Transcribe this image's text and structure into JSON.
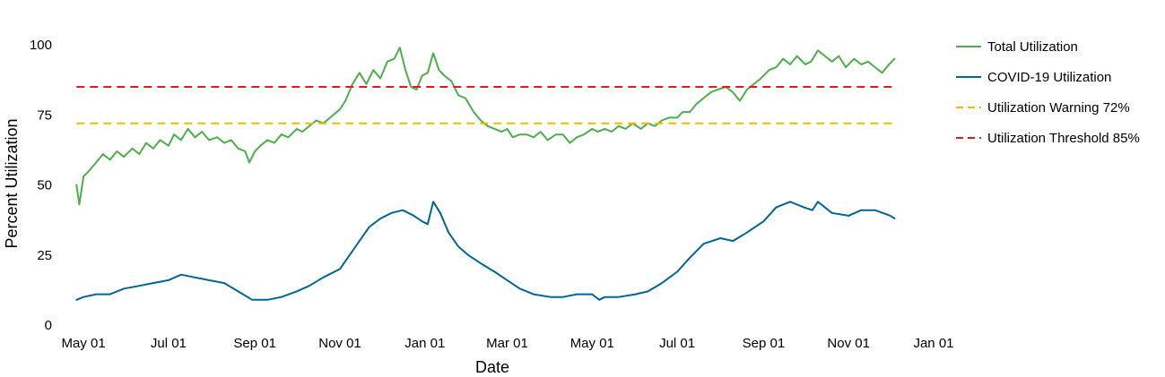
{
  "chart_data": {
    "type": "line",
    "xlabel": "Date",
    "ylabel": "Percent Utilization",
    "xlim": [
      "2020-04-20",
      "2022-01-10"
    ],
    "ylim": [
      0,
      108
    ],
    "x_ticks": [
      {
        "date": "2020-05-01",
        "label": "May 01"
      },
      {
        "date": "2020-07-01",
        "label": "Jul 01"
      },
      {
        "date": "2020-09-01",
        "label": "Sep 01"
      },
      {
        "date": "2020-11-01",
        "label": "Nov 01"
      },
      {
        "date": "2021-01-01",
        "label": "Jan 01"
      },
      {
        "date": "2021-03-01",
        "label": "Mar 01"
      },
      {
        "date": "2021-05-01",
        "label": "May 01"
      },
      {
        "date": "2021-07-01",
        "label": "Jul 01"
      },
      {
        "date": "2021-09-01",
        "label": "Sep 01"
      },
      {
        "date": "2021-11-01",
        "label": "Nov 01"
      },
      {
        "date": "2022-01-01",
        "label": "Jan 01"
      }
    ],
    "y_ticks": [
      0,
      25,
      50,
      75,
      100
    ],
    "grid": false,
    "legend": "right",
    "series": [
      {
        "name": "Total Utilization",
        "color": "#4daf4a",
        "style": "solid",
        "points": [
          [
            "2020-04-26",
            50
          ],
          [
            "2020-04-28",
            43
          ],
          [
            "2020-05-01",
            53
          ],
          [
            "2020-05-05",
            55
          ],
          [
            "2020-05-10",
            58
          ],
          [
            "2020-05-15",
            61
          ],
          [
            "2020-05-20",
            59
          ],
          [
            "2020-05-25",
            62
          ],
          [
            "2020-05-30",
            60
          ],
          [
            "2020-06-05",
            63
          ],
          [
            "2020-06-10",
            61
          ],
          [
            "2020-06-15",
            65
          ],
          [
            "2020-06-20",
            63
          ],
          [
            "2020-06-25",
            66
          ],
          [
            "2020-07-01",
            64
          ],
          [
            "2020-07-05",
            68
          ],
          [
            "2020-07-10",
            66
          ],
          [
            "2020-07-15",
            70
          ],
          [
            "2020-07-20",
            67
          ],
          [
            "2020-07-25",
            69
          ],
          [
            "2020-07-30",
            66
          ],
          [
            "2020-08-05",
            67
          ],
          [
            "2020-08-10",
            65
          ],
          [
            "2020-08-15",
            66
          ],
          [
            "2020-08-20",
            63
          ],
          [
            "2020-08-25",
            62
          ],
          [
            "2020-08-28",
            58
          ],
          [
            "2020-09-01",
            62
          ],
          [
            "2020-09-05",
            64
          ],
          [
            "2020-09-10",
            66
          ],
          [
            "2020-09-15",
            65
          ],
          [
            "2020-09-20",
            68
          ],
          [
            "2020-09-25",
            67
          ],
          [
            "2020-10-01",
            70
          ],
          [
            "2020-10-05",
            69
          ],
          [
            "2020-10-10",
            71
          ],
          [
            "2020-10-15",
            73
          ],
          [
            "2020-10-20",
            72
          ],
          [
            "2020-10-25",
            74
          ],
          [
            "2020-11-01",
            77
          ],
          [
            "2020-11-05",
            80
          ],
          [
            "2020-11-10",
            86
          ],
          [
            "2020-11-15",
            90
          ],
          [
            "2020-11-20",
            86
          ],
          [
            "2020-11-25",
            91
          ],
          [
            "2020-11-30",
            88
          ],
          [
            "2020-12-05",
            94
          ],
          [
            "2020-12-10",
            95
          ],
          [
            "2020-12-14",
            99
          ],
          [
            "2020-12-18",
            91
          ],
          [
            "2020-12-22",
            85
          ],
          [
            "2020-12-26",
            84
          ],
          [
            "2020-12-30",
            89
          ],
          [
            "2021-01-03",
            90
          ],
          [
            "2021-01-07",
            97
          ],
          [
            "2021-01-11",
            91
          ],
          [
            "2021-01-15",
            89
          ],
          [
            "2021-01-20",
            87
          ],
          [
            "2021-01-25",
            82
          ],
          [
            "2021-01-30",
            81
          ],
          [
            "2021-02-05",
            76
          ],
          [
            "2021-02-10",
            73
          ],
          [
            "2021-02-15",
            71
          ],
          [
            "2021-02-20",
            70
          ],
          [
            "2021-02-25",
            69
          ],
          [
            "2021-03-01",
            70
          ],
          [
            "2021-03-05",
            67
          ],
          [
            "2021-03-10",
            68
          ],
          [
            "2021-03-15",
            68
          ],
          [
            "2021-03-20",
            67
          ],
          [
            "2021-03-25",
            69
          ],
          [
            "2021-03-30",
            66
          ],
          [
            "2021-04-05",
            68
          ],
          [
            "2021-04-10",
            68
          ],
          [
            "2021-04-15",
            65
          ],
          [
            "2021-04-20",
            67
          ],
          [
            "2021-04-25",
            68
          ],
          [
            "2021-05-01",
            70
          ],
          [
            "2021-05-05",
            69
          ],
          [
            "2021-05-10",
            70
          ],
          [
            "2021-05-15",
            69
          ],
          [
            "2021-05-20",
            71
          ],
          [
            "2021-05-25",
            70
          ],
          [
            "2021-05-30",
            72
          ],
          [
            "2021-06-05",
            70
          ],
          [
            "2021-06-10",
            72
          ],
          [
            "2021-06-15",
            71
          ],
          [
            "2021-06-20",
            73
          ],
          [
            "2021-06-25",
            74
          ],
          [
            "2021-07-01",
            74
          ],
          [
            "2021-07-05",
            76
          ],
          [
            "2021-07-10",
            76
          ],
          [
            "2021-07-15",
            79
          ],
          [
            "2021-07-20",
            81
          ],
          [
            "2021-07-25",
            83
          ],
          [
            "2021-07-30",
            84
          ],
          [
            "2021-08-05",
            85
          ],
          [
            "2021-08-10",
            83
          ],
          [
            "2021-08-15",
            80
          ],
          [
            "2021-08-20",
            84
          ],
          [
            "2021-08-25",
            86
          ],
          [
            "2021-08-30",
            88
          ],
          [
            "2021-09-05",
            91
          ],
          [
            "2021-09-10",
            92
          ],
          [
            "2021-09-15",
            95
          ],
          [
            "2021-09-20",
            93
          ],
          [
            "2021-09-25",
            96
          ],
          [
            "2021-10-01",
            93
          ],
          [
            "2021-10-05",
            94
          ],
          [
            "2021-10-10",
            98
          ],
          [
            "2021-10-15",
            96
          ],
          [
            "2021-10-20",
            94
          ],
          [
            "2021-10-25",
            96
          ],
          [
            "2021-10-30",
            92
          ],
          [
            "2021-11-05",
            95
          ],
          [
            "2021-11-10",
            93
          ],
          [
            "2021-11-15",
            94
          ],
          [
            "2021-11-20",
            92
          ],
          [
            "2021-11-25",
            90
          ],
          [
            "2021-11-30",
            93
          ],
          [
            "2021-12-04",
            95
          ]
        ]
      },
      {
        "name": "COVID-19 Utilization",
        "color": "#006699",
        "style": "solid",
        "points": [
          [
            "2020-04-26",
            9
          ],
          [
            "2020-05-01",
            10
          ],
          [
            "2020-05-10",
            11
          ],
          [
            "2020-05-20",
            11
          ],
          [
            "2020-05-30",
            13
          ],
          [
            "2020-06-10",
            14
          ],
          [
            "2020-06-20",
            15
          ],
          [
            "2020-07-01",
            16
          ],
          [
            "2020-07-10",
            18
          ],
          [
            "2020-07-20",
            17
          ],
          [
            "2020-07-30",
            16
          ],
          [
            "2020-08-10",
            15
          ],
          [
            "2020-08-20",
            12
          ],
          [
            "2020-08-30",
            9
          ],
          [
            "2020-09-10",
            9
          ],
          [
            "2020-09-20",
            10
          ],
          [
            "2020-10-01",
            12
          ],
          [
            "2020-10-10",
            14
          ],
          [
            "2020-10-20",
            17
          ],
          [
            "2020-11-01",
            20
          ],
          [
            "2020-11-08",
            25
          ],
          [
            "2020-11-15",
            30
          ],
          [
            "2020-11-22",
            35
          ],
          [
            "2020-11-30",
            38
          ],
          [
            "2020-12-08",
            40
          ],
          [
            "2020-12-16",
            41
          ],
          [
            "2020-12-24",
            39
          ],
          [
            "2020-12-30",
            37
          ],
          [
            "2021-01-03",
            36
          ],
          [
            "2021-01-07",
            44
          ],
          [
            "2021-01-12",
            40
          ],
          [
            "2021-01-18",
            33
          ],
          [
            "2021-01-25",
            28
          ],
          [
            "2021-02-01",
            25
          ],
          [
            "2021-02-10",
            22
          ],
          [
            "2021-02-20",
            19
          ],
          [
            "2021-03-01",
            16
          ],
          [
            "2021-03-10",
            13
          ],
          [
            "2021-03-20",
            11
          ],
          [
            "2021-04-01",
            10
          ],
          [
            "2021-04-10",
            10
          ],
          [
            "2021-04-20",
            11
          ],
          [
            "2021-05-01",
            11
          ],
          [
            "2021-05-06",
            9
          ],
          [
            "2021-05-10",
            10
          ],
          [
            "2021-05-20",
            10
          ],
          [
            "2021-06-01",
            11
          ],
          [
            "2021-06-10",
            12
          ],
          [
            "2021-06-20",
            15
          ],
          [
            "2021-07-01",
            19
          ],
          [
            "2021-07-10",
            24
          ],
          [
            "2021-07-20",
            29
          ],
          [
            "2021-08-01",
            31
          ],
          [
            "2021-08-10",
            30
          ],
          [
            "2021-08-20",
            33
          ],
          [
            "2021-09-01",
            37
          ],
          [
            "2021-09-10",
            42
          ],
          [
            "2021-09-20",
            44
          ],
          [
            "2021-09-30",
            42
          ],
          [
            "2021-10-06",
            41
          ],
          [
            "2021-10-10",
            44
          ],
          [
            "2021-10-20",
            40
          ],
          [
            "2021-11-01",
            39
          ],
          [
            "2021-11-10",
            41
          ],
          [
            "2021-11-20",
            41
          ],
          [
            "2021-12-01",
            39
          ],
          [
            "2021-12-04",
            38
          ]
        ]
      },
      {
        "name": "Utilization Warning 72%",
        "color": "#f5b800",
        "style": "dashed",
        "points": [
          [
            "2020-04-26",
            72
          ],
          [
            "2021-12-04",
            72
          ]
        ]
      },
      {
        "name": "Utilization Threshold 85%",
        "color": "#dd1c1c",
        "style": "dashed",
        "points": [
          [
            "2020-04-26",
            85
          ],
          [
            "2021-12-04",
            85
          ]
        ]
      }
    ]
  }
}
